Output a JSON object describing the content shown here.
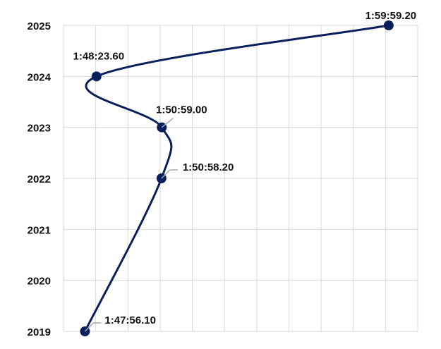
{
  "chart_data": {
    "type": "line",
    "title": "",
    "xlabel": "",
    "ylabel": "",
    "orientation": "years on vertical axis, time values on horizontal axis",
    "ylim": [
      2019,
      2025
    ],
    "y_ticks": [
      "2019",
      "2020",
      "2021",
      "2022",
      "2023",
      "2024",
      "2025"
    ],
    "grid": true,
    "x_axis_labels_shown": false,
    "bottom_axis_gradient": [
      "#16a34a",
      "#facc15",
      "#ef4444"
    ],
    "series_color": "#0b1f5c",
    "series": [
      {
        "points": [
          {
            "year": 2019,
            "time": "1:47:56.10",
            "seconds": 6476.1,
            "label": "1:47:56.10"
          },
          {
            "year": 2022,
            "time": "1:50:58.20",
            "seconds": 6658.2,
            "label": "1:50:58.20"
          },
          {
            "year": 2023,
            "time": "1:50:59.00",
            "seconds": 6659.0,
            "label": "1:50:59.00"
          },
          {
            "year": 2024,
            "time": "1:48:23.60",
            "seconds": 6503.6,
            "label": "1:48:23.60"
          },
          {
            "year": 2025,
            "time": "1:59:59.20",
            "seconds": 7199.2,
            "label": "1:59:59.20"
          }
        ]
      }
    ]
  }
}
